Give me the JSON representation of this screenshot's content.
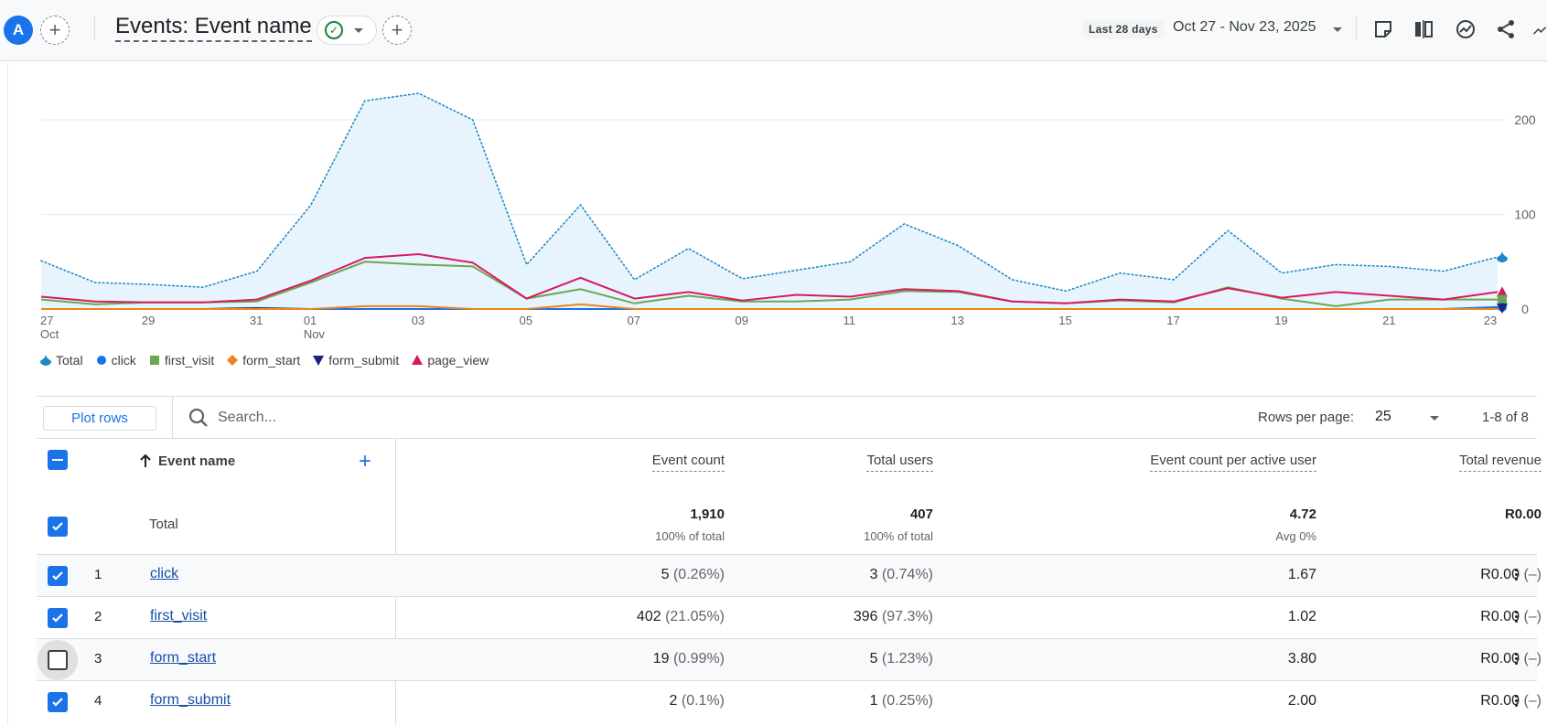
{
  "header": {
    "avatar_letter": "A",
    "title": "Events: Event name",
    "date_badge": "Last 28 days",
    "date_range": "Oct 27 - Nov 23, 2025"
  },
  "chart_data": {
    "type": "line",
    "x": [
      "Oct 27",
      "Oct 28",
      "Oct 29",
      "Oct 30",
      "Oct 31",
      "Nov 01",
      "Nov 02",
      "Nov 03",
      "Nov 04",
      "Nov 05",
      "Nov 06",
      "Nov 07",
      "Nov 08",
      "Nov 09",
      "Nov 10",
      "Nov 11",
      "Nov 12",
      "Nov 13",
      "Nov 14",
      "Nov 15",
      "Nov 16",
      "Nov 17",
      "Nov 18",
      "Nov 19",
      "Nov 20",
      "Nov 21",
      "Nov 22",
      "Nov 23"
    ],
    "tick_labels": [
      {
        "i": 0,
        "top": "27",
        "bottom": "Oct"
      },
      {
        "i": 2,
        "top": "29",
        "bottom": ""
      },
      {
        "i": 4,
        "top": "31",
        "bottom": ""
      },
      {
        "i": 5,
        "top": "01",
        "bottom": "Nov"
      },
      {
        "i": 7,
        "top": "03",
        "bottom": ""
      },
      {
        "i": 9,
        "top": "05",
        "bottom": ""
      },
      {
        "i": 11,
        "top": "07",
        "bottom": ""
      },
      {
        "i": 13,
        "top": "09",
        "bottom": ""
      },
      {
        "i": 15,
        "top": "11",
        "bottom": ""
      },
      {
        "i": 17,
        "top": "13",
        "bottom": ""
      },
      {
        "i": 19,
        "top": "15",
        "bottom": ""
      },
      {
        "i": 21,
        "top": "17",
        "bottom": ""
      },
      {
        "i": 23,
        "top": "19",
        "bottom": ""
      },
      {
        "i": 25,
        "top": "21",
        "bottom": ""
      },
      {
        "i": 27,
        "top": "23",
        "bottom": ""
      }
    ],
    "y_ticks": [
      "0",
      "100",
      "200"
    ],
    "ylim": [
      0,
      230
    ],
    "grid": true,
    "series": [
      {
        "name": "Total",
        "color": "#1e88c7",
        "style": "dotted-area",
        "marker": "teardrop",
        "values": [
          51,
          28,
          26,
          23,
          40,
          110,
          220,
          228,
          200,
          47,
          110,
          31,
          64,
          32,
          41,
          50,
          90,
          67,
          31,
          19,
          38,
          31,
          83,
          38,
          47,
          45,
          40,
          55
        ]
      },
      {
        "name": "click",
        "color": "#1a73e8",
        "style": "line",
        "marker": "circle",
        "values": [
          0,
          0,
          0,
          0,
          0,
          0,
          0,
          0,
          0,
          0,
          0,
          0,
          0,
          0,
          0,
          0,
          0,
          0,
          0,
          0,
          0,
          0,
          0,
          0,
          0,
          0,
          0,
          2
        ]
      },
      {
        "name": "first_visit",
        "color": "#6aa84f",
        "style": "line",
        "marker": "square",
        "values": [
          10,
          5,
          7,
          7,
          8,
          28,
          50,
          47,
          45,
          11,
          21,
          6,
          14,
          8,
          8,
          10,
          19,
          18,
          8,
          6,
          9,
          7,
          23,
          11,
          3,
          10,
          10,
          10
        ]
      },
      {
        "name": "form_start",
        "color": "#e8871e",
        "style": "line",
        "marker": "diamond",
        "values": [
          0,
          0,
          0,
          0,
          0,
          0,
          3,
          3,
          0,
          0,
          5,
          0,
          0,
          0,
          0,
          0,
          0,
          0,
          0,
          0,
          0,
          0,
          0,
          0,
          0,
          0,
          0,
          0
        ]
      },
      {
        "name": "form_submit",
        "color": "#1a237e",
        "style": "line",
        "marker": "triangle-down",
        "values": [
          0,
          0,
          0,
          0,
          1,
          0,
          0,
          0,
          0,
          0,
          0,
          0,
          0,
          0,
          0,
          0,
          0,
          0,
          0,
          0,
          0,
          0,
          0,
          0,
          0,
          0,
          0,
          1
        ]
      },
      {
        "name": "page_view",
        "color": "#d81b60",
        "style": "line",
        "marker": "triangle-up",
        "values": [
          13,
          8,
          7,
          7,
          10,
          30,
          54,
          58,
          49,
          11,
          33,
          11,
          18,
          9,
          15,
          13,
          21,
          19,
          8,
          6,
          10,
          8,
          22,
          12,
          18,
          14,
          10,
          18
        ]
      }
    ]
  },
  "legend": [
    {
      "label": "Total",
      "color": "#1e88c7",
      "icon": "teardrop-icon"
    },
    {
      "label": "click",
      "color": "#1a73e8",
      "icon": "circle-icon"
    },
    {
      "label": "first_visit",
      "color": "#6aa84f",
      "icon": "square-icon"
    },
    {
      "label": "form_start",
      "color": "#e8871e",
      "icon": "diamond-icon"
    },
    {
      "label": "form_submit",
      "color": "#1a237e",
      "icon": "triangle-down-icon"
    },
    {
      "label": "page_view",
      "color": "#d81b60",
      "icon": "triangle-up-icon"
    }
  ],
  "toolbar": {
    "plot_rows_label": "Plot rows",
    "search_placeholder": "Search...",
    "rows_per_page_label": "Rows per page:",
    "rows_per_page_value": "25",
    "page_info": "1-8 of 8"
  },
  "table": {
    "columns": {
      "event_name": "Event name",
      "event_count": "Event count",
      "total_users": "Total users",
      "per_user": "Event count per active user",
      "revenue": "Total revenue"
    },
    "total": {
      "label": "Total",
      "event_count": "1,910",
      "event_count_sub": "100% of total",
      "total_users": "407",
      "total_users_sub": "100% of total",
      "per_user": "4.72",
      "per_user_sub": "Avg 0%",
      "revenue": "R0.00"
    },
    "rows": [
      {
        "idx": "1",
        "name": "click",
        "checked": true,
        "count": "5",
        "count_pct": "(0.26%)",
        "users": "3",
        "users_pct": "(0.74%)",
        "per_user": "1.67",
        "revenue": "R0.00",
        "revenue_pct": "(–)"
      },
      {
        "idx": "2",
        "name": "first_visit",
        "checked": true,
        "count": "402",
        "count_pct": "(21.05%)",
        "users": "396",
        "users_pct": "(97.3%)",
        "per_user": "1.02",
        "revenue": "R0.00",
        "revenue_pct": "(–)"
      },
      {
        "idx": "3",
        "name": "form_start",
        "checked": false,
        "count": "19",
        "count_pct": "(0.99%)",
        "users": "5",
        "users_pct": "(1.23%)",
        "per_user": "3.80",
        "revenue": "R0.00",
        "revenue_pct": "(–)"
      },
      {
        "idx": "4",
        "name": "form_submit",
        "checked": true,
        "count": "2",
        "count_pct": "(0.1%)",
        "users": "1",
        "users_pct": "(0.25%)",
        "per_user": "2.00",
        "revenue": "R0.00",
        "revenue_pct": "(–)"
      }
    ]
  }
}
